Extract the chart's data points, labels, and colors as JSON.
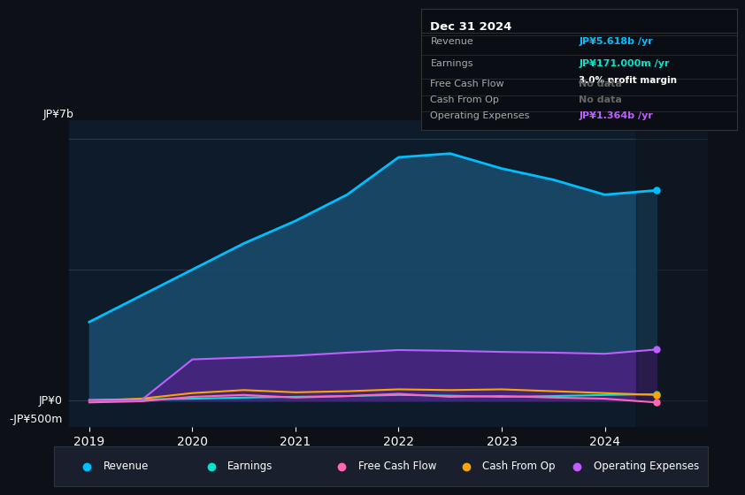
{
  "background_color": "#0d1117",
  "plot_bg_color": "#0d1b2a",
  "ylabel_top": "JP¥7b",
  "ylabel_bottom": "-JP¥500m",
  "ylabel_zero": "JP¥0",
  "years": [
    2019,
    2019.5,
    2020,
    2020.5,
    2021,
    2021.5,
    2022,
    2022.5,
    2023,
    2023.5,
    2024,
    2024.5
  ],
  "revenue": [
    2.1,
    2.8,
    3.5,
    4.2,
    4.8,
    5.5,
    6.5,
    6.6,
    6.2,
    5.9,
    5.5,
    5.618
  ],
  "earnings": [
    0.02,
    0.03,
    0.05,
    0.08,
    0.1,
    0.12,
    0.15,
    0.13,
    0.1,
    0.12,
    0.15,
    0.171
  ],
  "free_cash_flow": [
    -0.05,
    -0.02,
    0.1,
    0.15,
    0.08,
    0.12,
    0.18,
    0.1,
    0.12,
    0.08,
    0.05,
    -0.05
  ],
  "cash_from_op": [
    0.0,
    0.05,
    0.2,
    0.28,
    0.22,
    0.25,
    0.3,
    0.28,
    0.3,
    0.25,
    0.2,
    0.15
  ],
  "operating_expenses": [
    0.0,
    0.0,
    1.1,
    1.15,
    1.2,
    1.28,
    1.35,
    1.33,
    1.3,
    1.28,
    1.25,
    1.364
  ],
  "revenue_color": "#00bfff",
  "earnings_color": "#00e5cc",
  "free_cash_flow_color": "#ff69b4",
  "cash_from_op_color": "#ffa500",
  "operating_expenses_color": "#bf5fff",
  "revenue_fill_color": "#1a4a6b",
  "operating_expenses_fill_color": "#4b2080",
  "info_box": {
    "title": "Dec 31 2024",
    "revenue_label": "Revenue",
    "revenue_value": "JP¥5.618b /yr",
    "earnings_label": "Earnings",
    "earnings_value": "JP¥171.000m /yr",
    "profit_margin": "3.0% profit margin",
    "fcf_label": "Free Cash Flow",
    "fcf_value": "No data",
    "cashop_label": "Cash From Op",
    "cashop_value": "No data",
    "opex_label": "Operating Expenses",
    "opex_value": "JP¥1.364b /yr"
  },
  "legend_items": [
    "Revenue",
    "Earnings",
    "Free Cash Flow",
    "Cash From Op",
    "Operating Expenses"
  ],
  "legend_colors": [
    "#00bfff",
    "#00e5cc",
    "#ff69b4",
    "#ffa500",
    "#bf5fff"
  ],
  "xticklabels": [
    "2019",
    "2020",
    "2021",
    "2022",
    "2023",
    "2024"
  ],
  "xticks": [
    2019,
    2020,
    2021,
    2022,
    2023,
    2024
  ],
  "ylim": [
    -0.7,
    7.5
  ],
  "xlim": [
    2018.8,
    2025.0
  ]
}
